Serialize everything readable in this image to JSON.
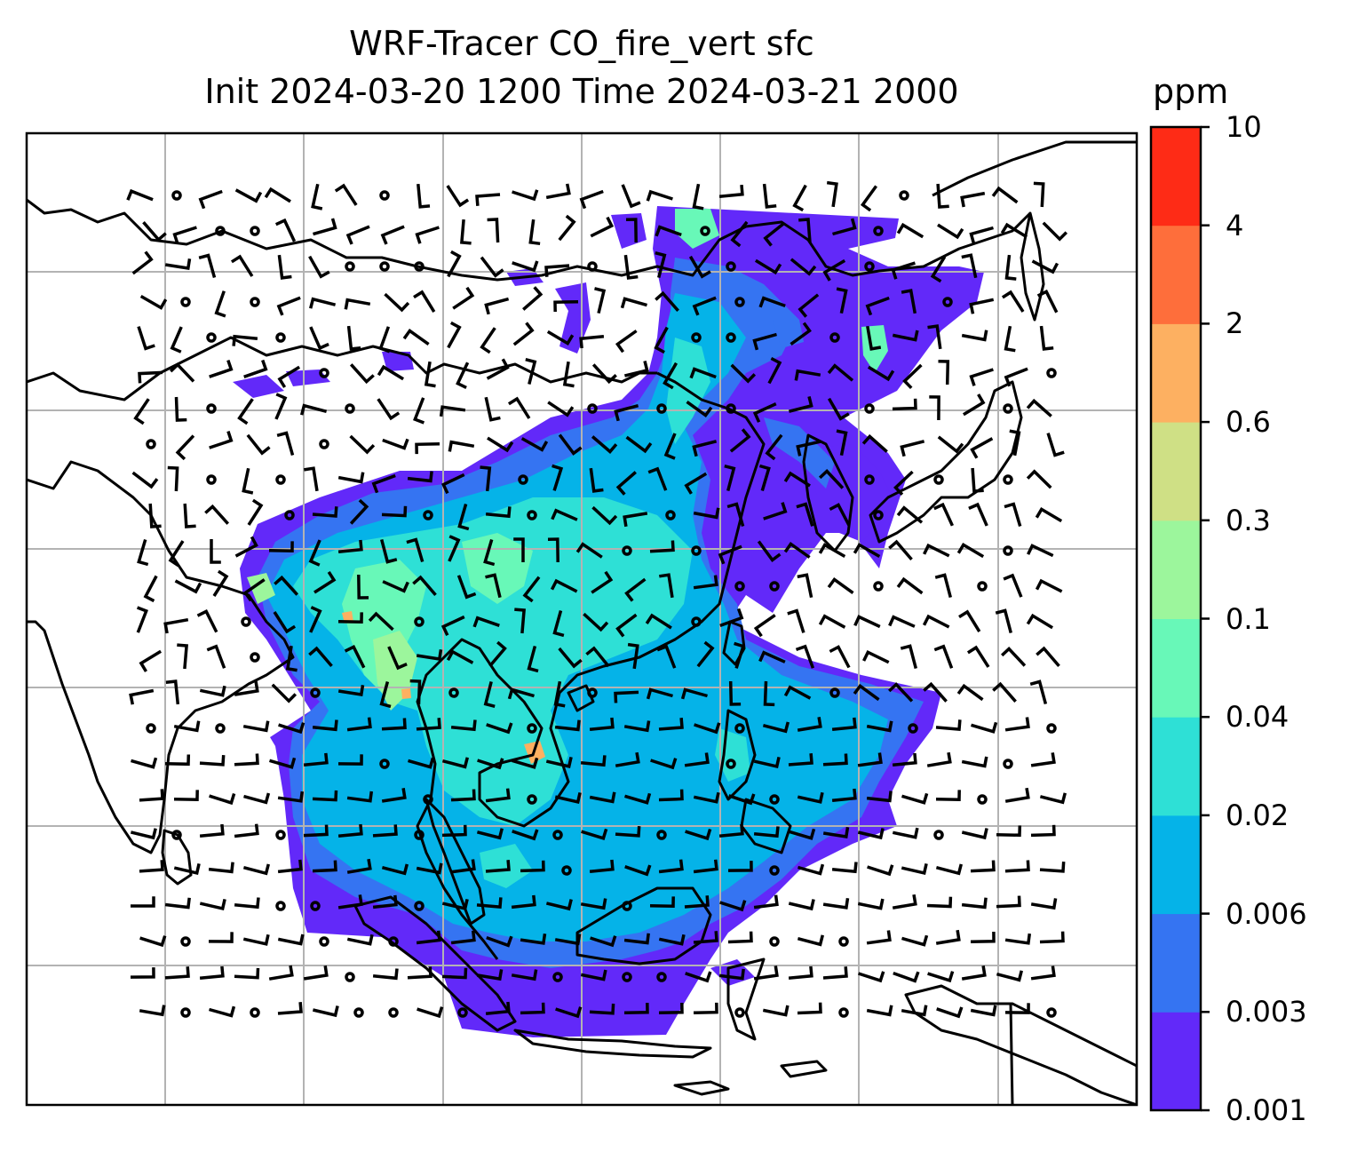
{
  "figure": {
    "title_line1": "WRF-Tracer CO_fire_vert sfc",
    "title_line2": "Init 2024-03-20 1200 Time 2024-03-21 2000"
  },
  "colorbar": {
    "unit": "ppm",
    "levels": [
      "0.001",
      "0.003",
      "0.006",
      "0.02",
      "0.04",
      "0.1",
      "0.3",
      "0.6",
      "2",
      "4",
      "10"
    ],
    "colors": [
      "#6229f9",
      "#3574f2",
      "#05b3e8",
      "#2ee0d6",
      "#68f8b8",
      "#9cf69c",
      "#cfe085",
      "#fdb061",
      "#fe6e3b",
      "#fe2b16"
    ]
  },
  "map": {
    "gridlines": true,
    "wind_barbs": true,
    "field_colors": [
      "#6229f9",
      "#3574f2",
      "#05b3e8",
      "#2ee0d6",
      "#68f8b8",
      "#9cf69c",
      "#fdb061"
    ]
  }
}
